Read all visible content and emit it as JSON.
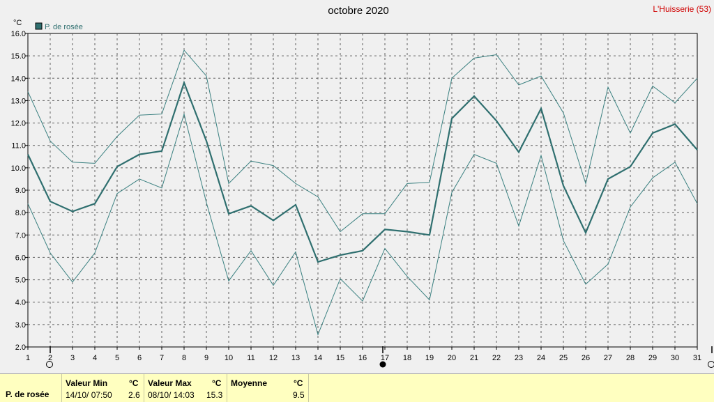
{
  "chart_data": {
    "type": "line",
    "title": "octobre 2020",
    "station": "L'Huisserie (53)",
    "y_unit": "°C",
    "ylim": [
      2.0,
      16.0
    ],
    "y_ticks": [
      "2.0",
      "3.0",
      "4.0",
      "5.0",
      "6.0",
      "7.0",
      "8.0",
      "9.0",
      "10.0",
      "11.0",
      "12.0",
      "13.0",
      "14.0",
      "15.0",
      "16.0"
    ],
    "x_ticks": [
      "1",
      "2",
      "3",
      "4",
      "5",
      "6",
      "7",
      "8",
      "9",
      "10",
      "11",
      "12",
      "13",
      "14",
      "15",
      "16",
      "17",
      "18",
      "19",
      "20",
      "21",
      "22",
      "23",
      "24",
      "25",
      "26",
      "27",
      "28",
      "29",
      "30",
      "31"
    ],
    "x": [
      1,
      2,
      3,
      4,
      5,
      6,
      7,
      8,
      9,
      10,
      11,
      12,
      13,
      14,
      15,
      16,
      17,
      18,
      19,
      20,
      21,
      22,
      23,
      24,
      25,
      26,
      27,
      28,
      29,
      30,
      31
    ],
    "legend": "P. de rosée",
    "grid": true,
    "colors": {
      "main": "#2f6f6f",
      "envelope": "#3a8080"
    },
    "series": [
      {
        "name": "P. de rosée",
        "values": [
          10.6,
          8.5,
          8.05,
          8.4,
          10.05,
          10.6,
          10.75,
          13.8,
          11.2,
          7.95,
          8.3,
          7.65,
          8.35,
          5.8,
          6.1,
          6.3,
          7.25,
          7.15,
          7.0,
          12.2,
          13.2,
          12.1,
          10.7,
          12.65,
          9.2,
          7.1,
          9.5,
          10.05,
          11.55,
          11.95,
          10.8
        ]
      },
      {
        "values": [
          13.4,
          11.2,
          10.25,
          10.2,
          11.4,
          12.35,
          12.4,
          15.25,
          14.1,
          9.3,
          10.3,
          10.1,
          9.3,
          8.7,
          7.15,
          7.95,
          7.95,
          9.3,
          9.35,
          14.0,
          14.9,
          15.05,
          13.7,
          14.1,
          12.45,
          9.3,
          13.6,
          11.55,
          13.65,
          12.9,
          14.0
        ]
      },
      {
        "values": [
          8.4,
          6.2,
          4.9,
          6.2,
          8.85,
          9.5,
          9.1,
          12.4,
          8.45,
          4.95,
          6.3,
          4.75,
          6.25,
          2.55,
          5.05,
          4.05,
          6.4,
          5.15,
          4.1,
          8.9,
          10.6,
          10.2,
          7.4,
          10.55,
          6.75,
          4.8,
          5.7,
          8.25,
          9.55,
          10.25,
          8.4
        ]
      }
    ],
    "stats": {
      "row_label": "P. de rosée",
      "min": {
        "header": "Valeur Min",
        "unit": "°C",
        "date": "14/10/  07:50",
        "value": "2.6"
      },
      "max": {
        "header": "Valeur Max",
        "unit": "°C",
        "date": "08/10/  14:03",
        "value": "15.3"
      },
      "mean": {
        "header": "Moyenne",
        "unit": "°C",
        "value": "9.5"
      }
    }
  }
}
